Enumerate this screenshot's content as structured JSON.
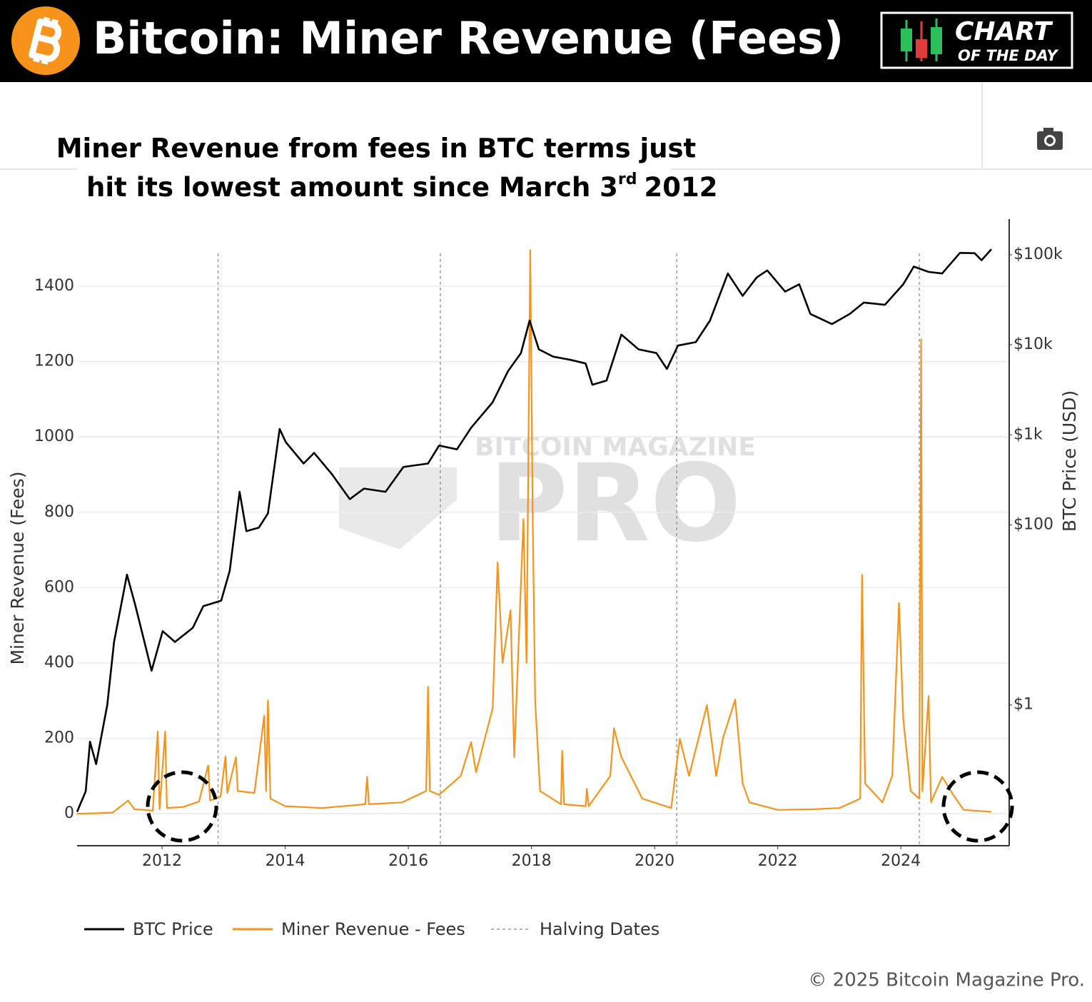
{
  "header": {
    "title": "Bitcoin: Miner Revenue (Fees)",
    "badge_top": "CHART",
    "badge_bottom": "OF THE DAY"
  },
  "subtitle": {
    "line1": "Miner Revenue from fees in BTC terms just",
    "line2": "hit its lowest amount since March 3",
    "sup": "rd",
    "line2_end": "2012"
  },
  "watermark": {
    "top": "BITCOIN MAGAZINE",
    "bottom": "PRO"
  },
  "footer": "© 2025 Bitcoin Magazine Pro.",
  "chart_data": {
    "type": "line",
    "y_label": "Miner Revenue (Fees)",
    "y2_label": "BTC Price (USD)",
    "xlim": [
      2010.62,
      2025.76
    ],
    "xticks": [
      2012,
      2014,
      2016,
      2018,
      2020,
      2022,
      2024
    ],
    "ylim": [
      -85,
      1578
    ],
    "yticks": [
      0,
      200,
      400,
      600,
      800,
      1000,
      1200,
      1400
    ],
    "y2lim": [
      0.0273,
      249000
    ],
    "y2log": true,
    "y2ticks": [
      {
        "value": 1,
        "label": "$1"
      },
      {
        "value": 100,
        "label": "$100"
      },
      {
        "value": 1000,
        "label": "$1k"
      },
      {
        "value": 10000,
        "label": "$10k"
      },
      {
        "value": 100000,
        "label": "$100k"
      }
    ],
    "grid": true,
    "series": [
      {
        "name": "BTC Price",
        "color": "#000000",
        "axis": "y2",
        "x": [
          2010.62,
          2010.76,
          2010.83,
          2010.93,
          2011.11,
          2011.22,
          2011.43,
          2011.57,
          2011.83,
          2012.01,
          2012.21,
          2012.5,
          2012.67,
          2012.96,
          2013.1,
          2013.26,
          2013.37,
          2013.57,
          2013.72,
          2013.91,
          2014.01,
          2014.3,
          2014.47,
          2014.76,
          2015.05,
          2015.28,
          2015.63,
          2015.92,
          2016.32,
          2016.5,
          2016.79,
          2017.02,
          2017.37,
          2017.62,
          2017.83,
          2017.97,
          2018.12,
          2018.35,
          2018.64,
          2018.88,
          2018.99,
          2019.22,
          2019.46,
          2019.74,
          2020.03,
          2020.2,
          2020.38,
          2020.67,
          2020.9,
          2021.19,
          2021.43,
          2021.66,
          2021.83,
          2022.12,
          2022.35,
          2022.53,
          2022.88,
          2023.17,
          2023.4,
          2023.74,
          2024.04,
          2024.21,
          2024.45,
          2024.67,
          2024.96,
          2025.2,
          2025.31,
          2025.47
        ],
        "values": [
          0.065,
          0.11,
          0.39,
          0.22,
          1,
          5,
          28,
          12.5,
          2.4,
          6.6,
          5,
          7.2,
          12.5,
          14.4,
          31,
          233,
          85,
          93,
          134,
          1160,
          830,
          480,
          630,
          365,
          193,
          253,
          233,
          440,
          480,
          760,
          690,
          1200,
          2300,
          5100,
          8100,
          18600,
          8900,
          7400,
          6800,
          6200,
          3600,
          4000,
          13000,
          8900,
          8100,
          5400,
          9800,
          10700,
          18600,
          62000,
          35000,
          56000,
          67000,
          39000,
          47000,
          22000,
          17000,
          22000,
          29500,
          27800,
          47000,
          74000,
          64500,
          62000,
          105000,
          104000,
          87000,
          115000
        ]
      },
      {
        "name": "Miner Revenue - Fees",
        "color": "#f7931a",
        "axis": "y",
        "x": [
          2010.62,
          2010.9,
          2011.2,
          2011.45,
          2011.55,
          2011.85,
          2011.93,
          2011.96,
          2012.05,
          2012.08,
          2012.35,
          2012.6,
          2012.75,
          2012.78,
          2012.95,
          2013.03,
          2013.06,
          2013.2,
          2013.23,
          2013.5,
          2013.66,
          2013.69,
          2013.72,
          2013.76,
          2014.0,
          2014.6,
          2015.3,
          2015.33,
          2015.36,
          2015.9,
          2016.29,
          2016.32,
          2016.35,
          2016.5,
          2016.85,
          2017.02,
          2017.1,
          2017.37,
          2017.45,
          2017.53,
          2017.66,
          2017.72,
          2017.87,
          2017.92,
          2017.98,
          2018.02,
          2018.06,
          2018.14,
          2018.48,
          2018.5,
          2018.53,
          2018.88,
          2018.9,
          2018.93,
          2019.28,
          2019.34,
          2019.46,
          2019.8,
          2020.27,
          2020.41,
          2020.56,
          2020.85,
          2021.0,
          2021.11,
          2021.31,
          2021.43,
          2021.54,
          2022.0,
          2022.6,
          2023.0,
          2023.34,
          2023.37,
          2023.42,
          2023.7,
          2023.86,
          2023.91,
          2023.97,
          2024.04,
          2024.16,
          2024.3,
          2024.33,
          2024.35,
          2024.45,
          2024.49,
          2024.67,
          2024.85,
          2025.02,
          2025.47
        ],
        "values": [
          0,
          1,
          3,
          35,
          12,
          8,
          218,
          12,
          218,
          15,
          18,
          32,
          128,
          35,
          45,
          152,
          55,
          150,
          60,
          55,
          260,
          60,
          301,
          40,
          20,
          15,
          25,
          98,
          25,
          30,
          60,
          337,
          60,
          50,
          100,
          190,
          110,
          280,
          667,
          400,
          540,
          150,
          782,
          400,
          1496,
          795,
          300,
          60,
          25,
          167,
          25,
          20,
          66,
          20,
          100,
          227,
          150,
          40,
          15,
          199,
          100,
          288,
          100,
          200,
          303,
          80,
          30,
          10,
          12,
          15,
          40,
          634,
          80,
          30,
          100,
          312,
          559,
          250,
          60,
          40,
          1259,
          60,
          312,
          30,
          98,
          50,
          10,
          5
        ]
      }
    ],
    "halvings": {
      "name": "Halving Dates",
      "color": "#999999",
      "x": [
        2012.91,
        2016.52,
        2020.36,
        2024.3
      ]
    }
  }
}
